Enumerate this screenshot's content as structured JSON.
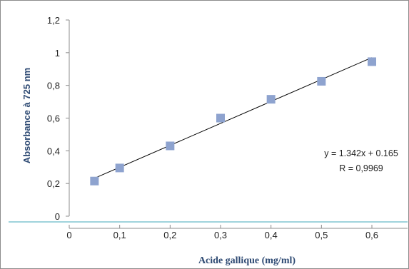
{
  "chart_data": {
    "type": "scatter",
    "title": "",
    "xlabel": "Acide gallique (mg/ml)",
    "ylabel": "Absorbance à 725 nm",
    "xlim": [
      0,
      0.6
    ],
    "ylim": [
      0,
      1.2
    ],
    "x_ticks": [
      "0",
      "0,1",
      "0,2",
      "0,3",
      "0,4",
      "0,5",
      "0,6"
    ],
    "y_ticks": [
      "0",
      "0,2",
      "0,4",
      "0,6",
      "0,8",
      "1",
      "1,2"
    ],
    "grid": false,
    "legend": "none",
    "series": [
      {
        "x": [
          0.05,
          0.1,
          0.2,
          0.3,
          0.4,
          0.5,
          0.6
        ],
        "y": [
          0.215,
          0.295,
          0.43,
          0.6,
          0.715,
          0.825,
          0.945
        ],
        "marker": "square",
        "color": "#8ea3cf"
      }
    ],
    "trendline": {
      "type": "linear",
      "slope": 1.342,
      "intercept": 0.165,
      "x_range": [
        0.05,
        0.6
      ],
      "color": "#000000"
    },
    "annotations": {
      "equation": "y = 1.342x + 0.165",
      "r_value": "R = 0,9969"
    },
    "colors": {
      "axis": "#8c8c8c",
      "separator": "#9fd3dc",
      "label": "#2e4a73"
    }
  }
}
